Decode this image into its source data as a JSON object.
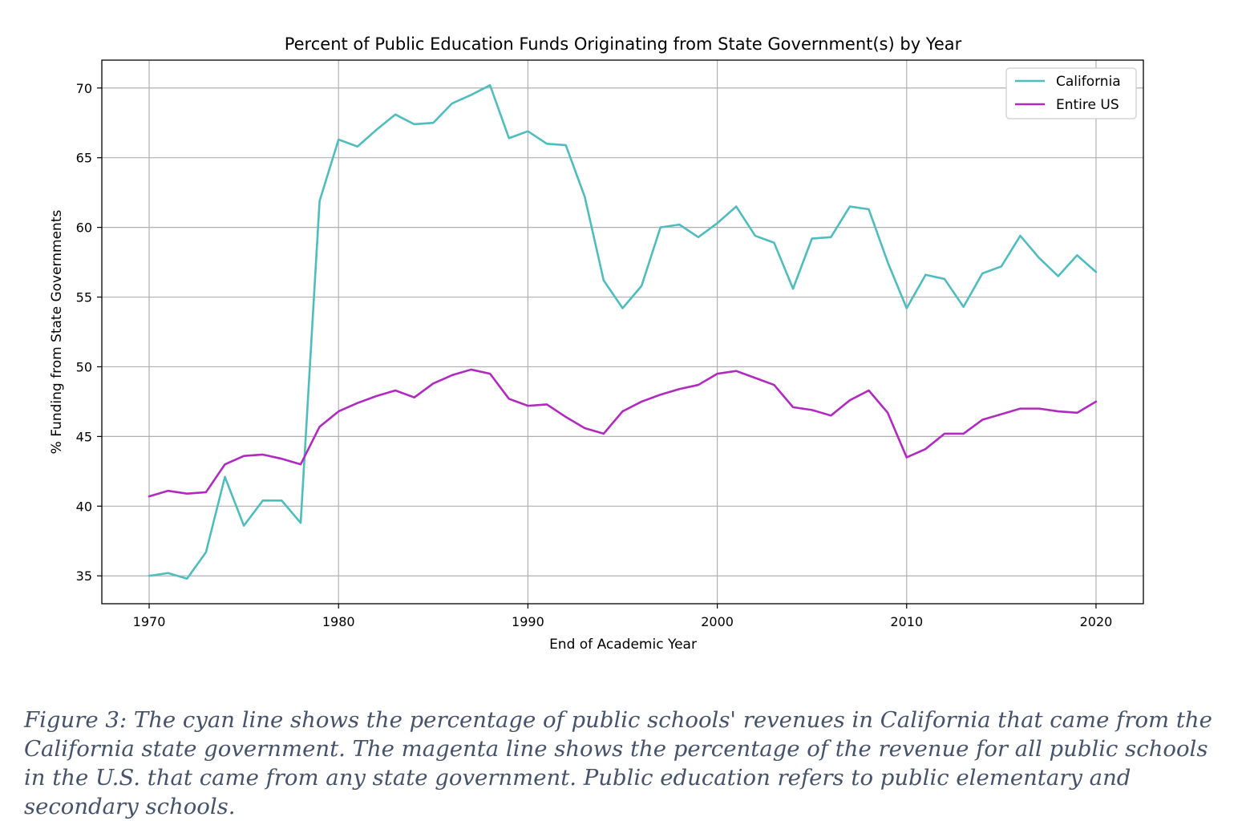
{
  "chart_data": {
    "type": "line",
    "title": "Percent of Public Education Funds Originating from State Government(s) by Year",
    "xlabel": "End of Academic Year",
    "ylabel": "% Funding from State Governments",
    "xlim": [
      1967.5,
      2022.5
    ],
    "ylim": [
      33.0,
      72.0
    ],
    "xticks": [
      1970,
      1980,
      1990,
      2000,
      2010,
      2020
    ],
    "yticks": [
      35,
      40,
      45,
      50,
      55,
      60,
      65,
      70
    ],
    "grid": true,
    "legend_position": "top-right",
    "x": [
      1970,
      1971,
      1972,
      1973,
      1974,
      1975,
      1976,
      1977,
      1978,
      1979,
      1980,
      1981,
      1982,
      1983,
      1984,
      1985,
      1986,
      1987,
      1988,
      1989,
      1990,
      1991,
      1992,
      1993,
      1994,
      1995,
      1996,
      1997,
      1998,
      1999,
      2000,
      2001,
      2002,
      2003,
      2004,
      2005,
      2006,
      2007,
      2008,
      2009,
      2010,
      2011,
      2012,
      2013,
      2014,
      2015,
      2016,
      2017,
      2018,
      2019,
      2020
    ],
    "series": [
      {
        "name": "California",
        "color": "#4fbcbd",
        "values": [
          35.0,
          35.2,
          34.8,
          36.7,
          42.1,
          38.6,
          40.4,
          40.4,
          38.8,
          61.9,
          66.3,
          65.8,
          67.0,
          68.1,
          67.4,
          67.5,
          68.9,
          69.5,
          70.2,
          66.4,
          66.9,
          66.0,
          65.9,
          62.2,
          56.2,
          54.2,
          55.8,
          60.0,
          60.2,
          59.3,
          60.3,
          61.5,
          59.4,
          58.9,
          55.6,
          59.2,
          59.3,
          61.5,
          61.3,
          57.5,
          54.2,
          56.6,
          56.3,
          54.3,
          56.7,
          57.2,
          59.4,
          57.8,
          56.5,
          58.0,
          56.8
        ]
      },
      {
        "name": "Entire US",
        "color": "#b12abf",
        "values": [
          40.7,
          41.1,
          40.9,
          41.0,
          43.0,
          43.6,
          43.7,
          43.4,
          43.0,
          45.7,
          46.8,
          47.4,
          47.9,
          48.3,
          47.8,
          48.8,
          49.4,
          49.8,
          49.5,
          47.7,
          47.2,
          47.3,
          46.4,
          45.6,
          45.2,
          46.8,
          47.5,
          48.0,
          48.4,
          48.7,
          49.5,
          49.7,
          49.2,
          48.7,
          47.1,
          46.9,
          46.5,
          47.6,
          48.3,
          46.7,
          43.5,
          44.1,
          45.2,
          45.2,
          46.2,
          46.6,
          47.0,
          47.0,
          46.8,
          46.7,
          47.5
        ]
      }
    ]
  },
  "caption": "Figure 3: The cyan line shows the percentage of public schools' revenues in California that came from the California state government. The magenta line shows the percentage of the revenue for all public schools in the U.S. that came from any state government. Public education refers to public elementary and secondary schools."
}
